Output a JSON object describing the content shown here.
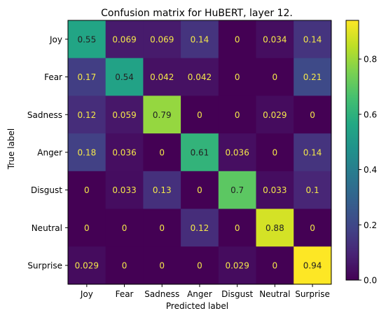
{
  "chart_data": {
    "type": "heatmap",
    "title": "Confusion matrix for HuBERT, layer 12.",
    "xlabel": "Predicted label",
    "ylabel": "True label",
    "x_categories": [
      "Joy",
      "Fear",
      "Sadness",
      "Anger",
      "Disgust",
      "Neutral",
      "Surprise"
    ],
    "y_categories": [
      "Joy",
      "Fear",
      "Sadness",
      "Anger",
      "Disgust",
      "Neutral",
      "Surprise"
    ],
    "values": [
      [
        0.55,
        0.069,
        0.069,
        0.14,
        0,
        0.034,
        0.14
      ],
      [
        0.17,
        0.54,
        0.042,
        0.042,
        0,
        0,
        0.21
      ],
      [
        0.12,
        0.059,
        0.79,
        0,
        0,
        0.029,
        0
      ],
      [
        0.18,
        0.036,
        0,
        0.61,
        0.036,
        0,
        0.14
      ],
      [
        0,
        0.033,
        0.13,
        0,
        0.7,
        0.033,
        0.1
      ],
      [
        0,
        0,
        0,
        0.12,
        0,
        0.88,
        0
      ],
      [
        0.029,
        0,
        0,
        0,
        0.029,
        0,
        0.94
      ]
    ],
    "cell_labels": [
      [
        "0.55",
        "0.069",
        "0.069",
        "0.14",
        "0",
        "0.034",
        "0.14"
      ],
      [
        "0.17",
        "0.54",
        "0.042",
        "0.042",
        "0",
        "0",
        "0.21"
      ],
      [
        "0.12",
        "0.059",
        "0.79",
        "0",
        "0",
        "0.029",
        "0"
      ],
      [
        "0.18",
        "0.036",
        "0",
        "0.61",
        "0.036",
        "0",
        "0.14"
      ],
      [
        "0",
        "0.033",
        "0.13",
        "0",
        "0.7",
        "0.033",
        "0.1"
      ],
      [
        "0",
        "0",
        "0",
        "0.12",
        "0",
        "0.88",
        "0"
      ],
      [
        "0.029",
        "0",
        "0",
        "0",
        "0.029",
        "0",
        "0.94"
      ]
    ],
    "colorbar": {
      "colormap": "viridis",
      "range": [
        0,
        0.94
      ],
      "ticks": [
        "0.0",
        "0.2",
        "0.4",
        "0.6",
        "0.8"
      ]
    },
    "text_colors": {
      "dark_cell": "#f5e84a",
      "light_cell": "#222222"
    }
  }
}
